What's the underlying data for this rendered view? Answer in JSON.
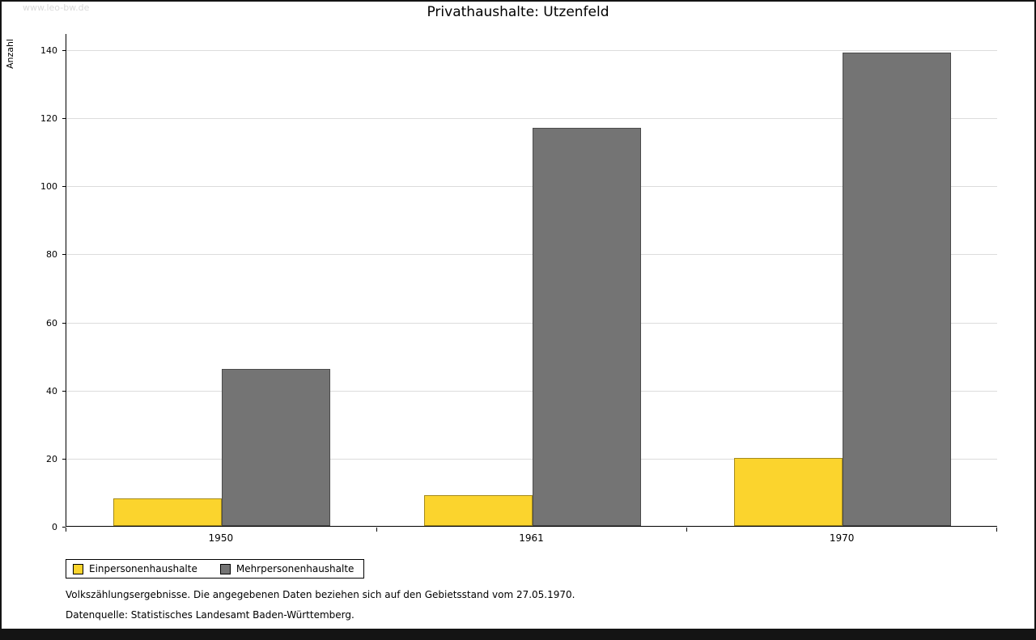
{
  "watermark": "www.leo-bw.de",
  "title": "Privathaushalte: Utzenfeld",
  "ylabel": "Anzahl",
  "footnotes": [
    "Volkszählungsergebnisse. Die angegebenen Daten beziehen sich auf den Gebietsstand vom 27.05.1970.",
    "Datenquelle: Statistisches Landesamt Baden-Württemberg."
  ],
  "colors": {
    "series1": "#fbd42d",
    "series2": "#747474",
    "gridline": "#dcdcdc",
    "frame": "#141414"
  },
  "chart_data": {
    "type": "bar",
    "categories": [
      "1950",
      "1961",
      "1970"
    ],
    "series": [
      {
        "name": "Einpersonenhaushalte",
        "color": "#fbd42d",
        "values": [
          8,
          9,
          20
        ]
      },
      {
        "name": "Mehrpersonenhaushalte",
        "color": "#747474",
        "values": [
          46,
          117,
          139
        ]
      }
    ],
    "title": "Privathaushalte: Utzenfeld",
    "xlabel": "",
    "ylabel": "Anzahl",
    "ylim": [
      0,
      140
    ],
    "ytick_step": 20,
    "grid": true,
    "legend_position": "bottom-left"
  }
}
